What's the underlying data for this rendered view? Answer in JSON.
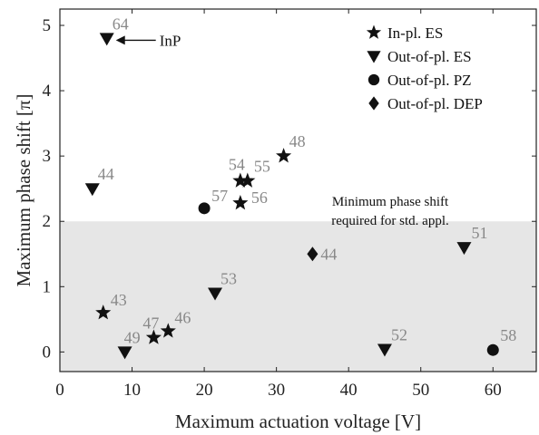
{
  "chart_data": {
    "type": "scatter",
    "xlabel": "Maximum actuation voltage [V]",
    "ylabel": "Maximum phase shift [π]",
    "xlim": [
      0,
      66
    ],
    "ylim": [
      -0.3,
      5.25
    ],
    "xticks": [
      0,
      10,
      20,
      30,
      40,
      50,
      60
    ],
    "yticks": [
      0,
      1,
      2,
      3,
      4,
      5
    ],
    "grid": false,
    "legend_position": "top-right",
    "shaded_region": {
      "y_from": -0.3,
      "y_to": 2,
      "color": "#e6e6e6",
      "label_lines": [
        "Minimum phase shift",
        "required for std. appl."
      ]
    },
    "series": [
      {
        "name": "In-pl. ES",
        "marker": "star",
        "points": [
          {
            "x": 6,
            "y": 0.6,
            "label": "43"
          },
          {
            "x": 13,
            "y": 0.22,
            "label": "47"
          },
          {
            "x": 15,
            "y": 0.32,
            "label": "46"
          },
          {
            "x": 25,
            "y": 2.62,
            "label": "54"
          },
          {
            "x": 26,
            "y": 2.62,
            "label": "55"
          },
          {
            "x": 25,
            "y": 2.28,
            "label": "56"
          },
          {
            "x": 31,
            "y": 3.0,
            "label": "48"
          }
        ]
      },
      {
        "name": "Out-of-pl. ES",
        "marker": "triangle-down",
        "points": [
          {
            "x": 4.5,
            "y": 2.5,
            "label": "44"
          },
          {
            "x": 6.5,
            "y": 4.8,
            "label": "64"
          },
          {
            "x": 9,
            "y": 0.0,
            "label": "49"
          },
          {
            "x": 21.5,
            "y": 0.9,
            "label": "53"
          },
          {
            "x": 45,
            "y": 0.04,
            "label": "52"
          },
          {
            "x": 56,
            "y": 1.6,
            "label": "51"
          }
        ]
      },
      {
        "name": "Out-of-pl. PZ",
        "marker": "circle",
        "points": [
          {
            "x": 20,
            "y": 2.2,
            "label": "57"
          },
          {
            "x": 60,
            "y": 0.03,
            "label": "58"
          }
        ]
      },
      {
        "name": "Out-of-pl. DEP",
        "marker": "diamond",
        "points": [
          {
            "x": 35,
            "y": 1.5,
            "label": "44"
          }
        ]
      }
    ],
    "annotations": [
      {
        "text": "InP",
        "points_to": {
          "x": 6.5,
          "y": 4.8
        }
      }
    ]
  }
}
